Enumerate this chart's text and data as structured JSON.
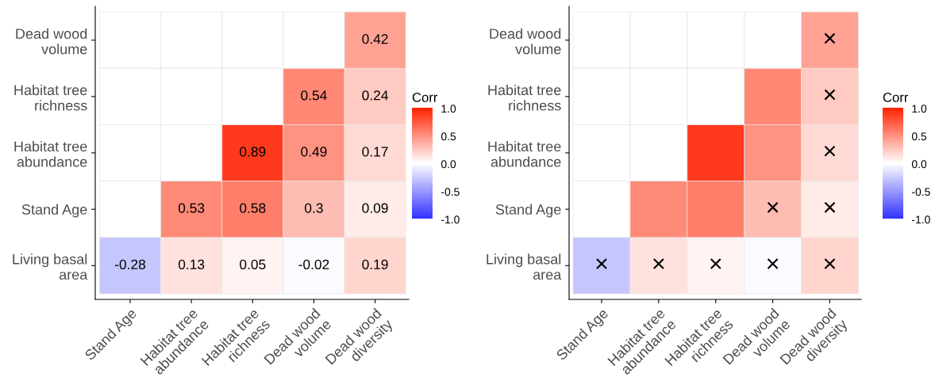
{
  "chart_data": [
    {
      "type": "heatmap",
      "categories": [
        "Stand Age",
        "Habitat tree\nabundance",
        "Habitat tree\nrichness",
        "Dead wood\nvolume",
        "Dead wood\ndiversity"
      ],
      "y_categories": [
        "Dead wood\nvolume",
        "Habitat tree\nrichness",
        "Habitat tree\nabundance",
        "Stand Age",
        "Living basal\narea"
      ],
      "cells": [
        [
          null,
          null,
          null,
          null,
          0.42
        ],
        [
          null,
          null,
          null,
          0.54,
          0.24
        ],
        [
          null,
          null,
          0.89,
          0.49,
          0.17
        ],
        [
          null,
          0.53,
          0.58,
          0.3,
          0.09
        ],
        [
          -0.28,
          0.13,
          0.05,
          -0.02,
          0.19
        ]
      ],
      "data_labels": true,
      "clabel": "Corr",
      "clim": [
        -1,
        1
      ],
      "cticks": [
        {
          "value": -1,
          "label": "-1.0"
        },
        {
          "value": -0.5,
          "label": "-0.5"
        },
        {
          "value": 0,
          "label": "0.0"
        },
        {
          "value": 0.5,
          "label": "0.5"
        },
        {
          "value": 1,
          "label": "1.0"
        }
      ]
    },
    {
      "type": "heatmap",
      "categories": [
        "Stand Age",
        "Habitat tree\nabundance",
        "Habitat tree\nrichness",
        "Dead wood\nvolume",
        "Dead wood\ndiversity"
      ],
      "y_categories": [
        "Dead wood\nvolume",
        "Habitat tree\nrichness",
        "Habitat tree\nabundance",
        "Stand Age",
        "Living basal\narea"
      ],
      "cells": [
        [
          null,
          null,
          null,
          null,
          0.42
        ],
        [
          null,
          null,
          null,
          0.54,
          0.24
        ],
        [
          null,
          null,
          0.89,
          0.49,
          0.17
        ],
        [
          null,
          0.53,
          0.58,
          0.3,
          0.09
        ],
        [
          -0.28,
          0.13,
          0.05,
          -0.02,
          0.19
        ]
      ],
      "cell_labels": [
        [
          null,
          null,
          null,
          null,
          "×"
        ],
        [
          null,
          null,
          null,
          null,
          "×"
        ],
        [
          null,
          null,
          null,
          null,
          "×"
        ],
        [
          null,
          null,
          null,
          "×",
          "×"
        ],
        [
          "×",
          "×",
          "×",
          "×",
          "×"
        ]
      ],
      "clabel": "Corr",
      "clim": [
        -1,
        1
      ],
      "cticks": [
        {
          "value": -1,
          "label": "-1.0"
        },
        {
          "value": -0.5,
          "label": "-0.5"
        },
        {
          "value": 0,
          "label": "0.0"
        },
        {
          "value": 0.5,
          "label": "0.5"
        },
        {
          "value": 1,
          "label": "1.0"
        }
      ]
    }
  ]
}
